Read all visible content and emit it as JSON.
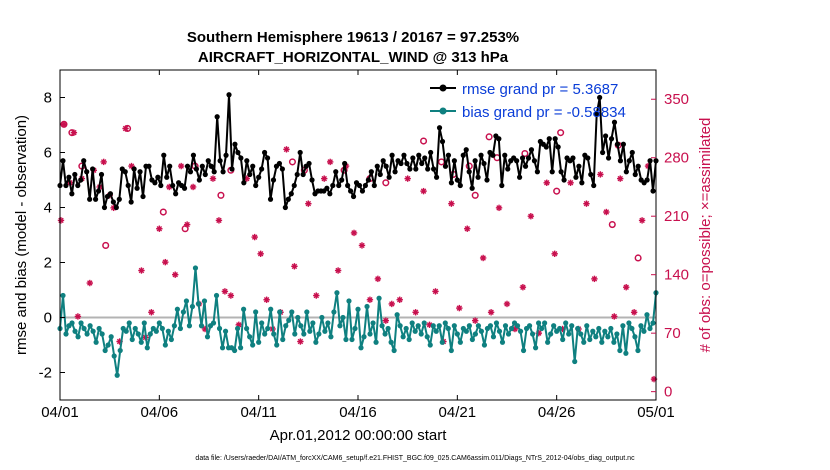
{
  "chart_data": {
    "type": "line",
    "title_line1": "Southern Hemisphere 19613 / 20167 = 97.253%",
    "title_line2": "AIRCRAFT_HORIZONTAL_WIND @ 313 hPa",
    "xlabel": "Apr.01,2012 00:00:00 start",
    "ylabel_left": "rmse and bias (model - observation)",
    "ylabel_right": "# of obs: o=possible; ×=assimilated",
    "footer": "data file: /Users/raeder/DAI/ATM_forcXX/CAM6_setup/f.e21.FHIST_BGC.f09_025.CAM6assim.011/Diags_NTrS_2012-04/obs_diag_output.nc",
    "xlim": [
      0,
      30
    ],
    "ylim_left": [
      -3,
      9
    ],
    "ylim_right": [
      -10,
      385
    ],
    "xticks": [
      0,
      5,
      10,
      15,
      20,
      25,
      30
    ],
    "xtick_labels": [
      "04/01",
      "04/06",
      "04/11",
      "04/16",
      "04/21",
      "04/26",
      "05/01"
    ],
    "yticks_left": [
      -2,
      0,
      2,
      4,
      6,
      8
    ],
    "yticks_left_labels": [
      "-2",
      "0",
      "2",
      "4",
      "6",
      "8"
    ],
    "yticks_right": [
      0,
      70,
      140,
      210,
      280,
      350
    ],
    "yticks_right_labels": [
      "0",
      "70",
      "140",
      "210",
      "280",
      "350"
    ],
    "colors": {
      "rmse": "#000000",
      "bias": "#0f8080",
      "obs": "#c8104e",
      "zero": "#b3b3b3",
      "legend_text": "#0a3dd8"
    },
    "legend": [
      {
        "name": "rmse grand pr = 5.3687"
      },
      {
        "name": "bias grand pr = -0.58834"
      }
    ],
    "series": [
      {
        "name": "rmse",
        "values": [
          4.8,
          5.7,
          4.8,
          5.1,
          4.5,
          5.2,
          4.8,
          5.0,
          5.7,
          5.3,
          4.3,
          5.4,
          4.3,
          4.6,
          5.2,
          4.0,
          4.4,
          4.5,
          4.2,
          4.0,
          4.3,
          5.4,
          5.3,
          4.8,
          4.2,
          5.4,
          4.7,
          5.3,
          4.4,
          5.5,
          5.5,
          5.0,
          4.9,
          5.1,
          4.8,
          5.9,
          5.1,
          5.5,
          4.8,
          4.5,
          4.9,
          4.8,
          4.7,
          5.5,
          5.3,
          5.9,
          5.4,
          5.0,
          5.5,
          5.2,
          5.7,
          5.5,
          5.3,
          7.3,
          5.7,
          5.3,
          5.9,
          8.1,
          5.4,
          6.3,
          6.0,
          5.8,
          4.9,
          5.7,
          5.2,
          5.5,
          4.8,
          5.1,
          5.4,
          6.0,
          5.8,
          4.3,
          5.0,
          5.5,
          5.6,
          5.4,
          4.0,
          4.3,
          4.5,
          4.8,
          5.2,
          6.0,
          5.2,
          5.5,
          5.6,
          5.0,
          4.5,
          4.6,
          4.6,
          4.6,
          4.7,
          4.5,
          4.8,
          5.3,
          4.8,
          5.0,
          5.6,
          4.8,
          4.6,
          4.4,
          4.9,
          4.8,
          4.6,
          4.8,
          5.0,
          5.3,
          4.8,
          5.5,
          5.2,
          5.7,
          5.5,
          5.1,
          5.9,
          5.3,
          5.7,
          5.6,
          5.9,
          5.6,
          5.4,
          5.8,
          5.4,
          5.9,
          5.6,
          5.8,
          5.4,
          6.0,
          5.4,
          5.1,
          6.9,
          6.4,
          5.5,
          5.9,
          4.9,
          5.7,
          5.0,
          4.8,
          5.9,
          6.1,
          5.3,
          4.7,
          5.7,
          5.1,
          5.9,
          5.6,
          5.0,
          6.0,
          5.9,
          6.6,
          6.5,
          4.8,
          5.9,
          5.4,
          5.7,
          5.8,
          5.7,
          5.1,
          5.8,
          5.5,
          5.8,
          6.1,
          5.7,
          5.3,
          6.4,
          6.3,
          6.2,
          6.5,
          5.3,
          6.5,
          6.2,
          5.3,
          5.0,
          5.8,
          5.7,
          5.8,
          5.1,
          5.5,
          4.9,
          5.9,
          5.8,
          5.2,
          4.8,
          7.4,
          8.0,
          6.0,
          6.6,
          5.8,
          6.5,
          7.1,
          6.3,
          5.7,
          6.3,
          5.3,
          5.7,
          6.0,
          5.2,
          5.5,
          5.0,
          4.9,
          5.0,
          5.7,
          4.6,
          5.7
        ]
      },
      {
        "name": "bias",
        "values": [
          -0.4,
          0.8,
          -0.6,
          -0.3,
          -0.2,
          -0.5,
          -0.7,
          -0.2,
          -0.4,
          -0.6,
          -0.3,
          -0.5,
          -0.9,
          -0.4,
          -0.6,
          -1.2,
          -1.0,
          -0.7,
          -1.4,
          -2.1,
          -1.2,
          -0.4,
          -0.5,
          -0.2,
          -0.8,
          -0.4,
          -0.6,
          -0.9,
          -0.2,
          -1.1,
          -0.6,
          -0.4,
          -0.5,
          -0.2,
          -0.4,
          -1.0,
          -0.5,
          -0.8,
          -0.3,
          0.3,
          -0.4,
          0.2,
          0.6,
          -0.3,
          0.4,
          1.8,
          0.5,
          -0.3,
          0.6,
          -0.7,
          -0.3,
          -0.2,
          0.8,
          -0.4,
          -1.1,
          -0.5,
          -1.1,
          -1.1,
          -1.2,
          -0.4,
          -1.1,
          0.3,
          -0.4,
          -0.7,
          -1.0,
          0.2,
          -0.9,
          -0.2,
          -0.6,
          -0.4,
          0.3,
          -0.6,
          -1.0,
          0.2,
          -0.8,
          -0.3,
          -0.1,
          0.2,
          -0.6,
          0.0,
          -0.3,
          -0.6,
          0.2,
          -0.5,
          -0.2,
          -0.9,
          -0.6,
          0.0,
          -0.5,
          -0.2,
          -0.7,
          0.2,
          0.9,
          -0.3,
          0.0,
          -0.8,
          0.6,
          -0.8,
          -0.4,
          0.3,
          -1.1,
          -0.7,
          0.4,
          -0.6,
          -0.2,
          -0.9,
          0.7,
          -0.3,
          -0.6,
          -0.4,
          -0.9,
          -1.2,
          0.1,
          -0.3,
          -0.7,
          -0.4,
          -0.8,
          -0.2,
          -0.5,
          -0.3,
          -0.6,
          -0.2,
          -0.7,
          -1.0,
          -0.3,
          -0.5,
          -0.3,
          -0.9,
          -0.2,
          -0.4,
          -1.2,
          -0.3,
          -0.6,
          -0.9,
          -0.4,
          -0.5,
          -0.3,
          -0.8,
          -0.6,
          -0.3,
          -0.5,
          -1.0,
          -0.4,
          -0.3,
          -0.7,
          -0.2,
          -0.5,
          -0.9,
          -0.3,
          -0.6,
          -0.4,
          -0.2,
          -0.3,
          -0.5,
          -1.2,
          -0.4,
          -0.3,
          -0.6,
          -1.1,
          -0.2,
          -0.4,
          -0.2,
          -0.9,
          -0.6,
          -0.3,
          -0.5,
          -0.4,
          -0.8,
          -0.2,
          -0.6,
          -0.3,
          -1.6,
          -0.4,
          -0.6,
          -0.9,
          -0.3,
          -0.8,
          -0.5,
          -0.7,
          -0.4,
          -0.9,
          -0.5,
          -0.7,
          -0.4,
          -0.9,
          -0.6,
          -1.2,
          -0.3,
          -1.3,
          -0.2,
          -0.4,
          -0.7,
          -1.2,
          -0.3,
          -0.5,
          0.1,
          -0.4,
          -0.2,
          0.9
        ]
      },
      {
        "name": "obs possible",
        "x": [
          0.2,
          0.6,
          1.1,
          2.3,
          3.4,
          5.2,
          6.3,
          6.8,
          8.1,
          8.6,
          11.7,
          12.3,
          14.3,
          15.6,
          16.4,
          18.3,
          19.2,
          19.8,
          20.6,
          20.9,
          21.6,
          22.0,
          23.4,
          25.0,
          25.2,
          27.8,
          28.1,
          29.1
        ],
        "values": [
          320,
          310,
          270,
          175,
          315,
          215,
          195,
          270,
          235,
          265,
          275,
          265,
          265,
          255,
          250,
          300,
          275,
          260,
          270,
          235,
          305,
          280,
          285,
          240,
          310,
          200,
          295,
          160
        ]
      },
      {
        "name": "obs assimilated",
        "x": [
          0.05,
          0.2,
          0.5,
          0.7,
          0.9,
          1.1,
          1.5,
          1.7,
          2.0,
          2.2,
          2.5,
          2.7,
          3.0,
          3.3,
          3.6,
          4.1,
          4.3,
          4.6,
          5.0,
          5.3,
          5.5,
          5.8,
          6.1,
          6.4,
          6.7,
          7.0,
          7.3,
          7.7,
          8.0,
          8.3,
          8.6,
          9.0,
          9.4,
          9.8,
          10.1,
          10.4,
          10.7,
          11.1,
          11.4,
          11.8,
          12.1,
          12.5,
          12.9,
          13.3,
          13.6,
          14.0,
          14.4,
          14.8,
          15.2,
          15.6,
          16.0,
          16.4,
          16.7,
          17.1,
          17.5,
          17.9,
          18.3,
          18.6,
          18.9,
          19.3,
          19.7,
          20.1,
          20.5,
          20.9,
          21.3,
          21.7,
          22.1,
          22.5,
          22.9,
          23.3,
          23.7,
          24.1,
          24.5,
          24.9,
          25.3,
          25.7,
          26.1,
          26.5,
          26.9,
          27.2,
          27.5,
          27.9,
          28.2,
          28.5,
          28.9,
          29.3,
          29.6,
          29.9
        ],
        "values": [
          205,
          320,
          250,
          310,
          90,
          255,
          130,
          265,
          245,
          275,
          235,
          220,
          60,
          315,
          270,
          145,
          65,
          95,
          195,
          155,
          245,
          140,
          270,
          200,
          245,
          105,
          75,
          255,
          205,
          120,
          115,
          80,
          255,
          185,
          165,
          110,
          75,
          95,
          290,
          150,
          60,
          225,
          115,
          255,
          275,
          145,
          270,
          190,
          175,
          110,
          135,
          85,
          105,
          110,
          255,
          95,
          240,
          80,
          120,
          60,
          225,
          100,
          195,
          85,
          160,
          95,
          220,
          105,
          75,
          125,
          210,
          70,
          250,
          165,
          75,
          250,
          75,
          225,
          135,
          260,
          215,
          90,
          255,
          125,
          95,
          205,
          270,
          15
        ]
      }
    ]
  }
}
